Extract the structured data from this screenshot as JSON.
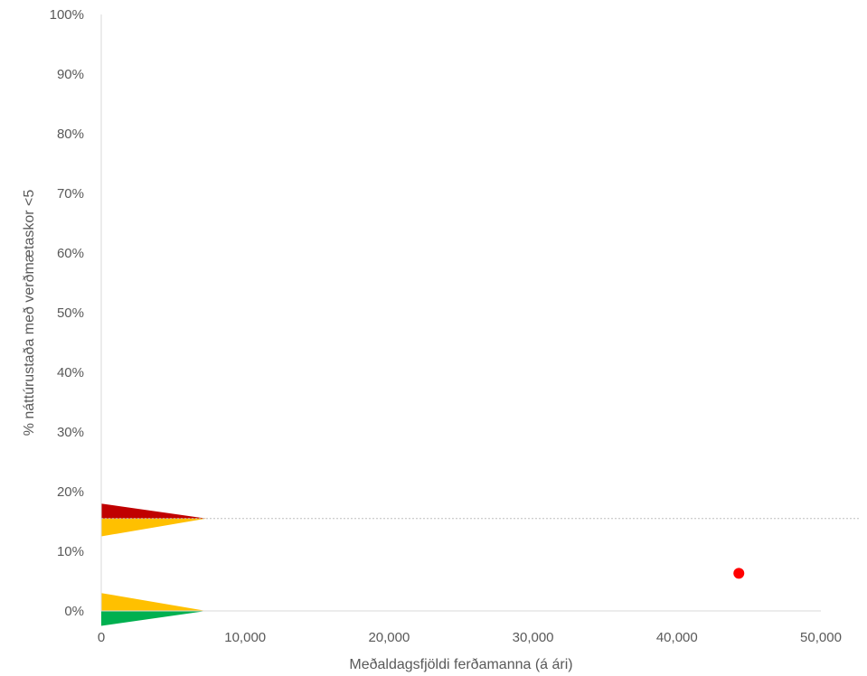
{
  "chart_data": {
    "type": "scatter",
    "title": "",
    "xlabel": "Meðaldagsfjöldi ferðamanna (á ári)",
    "ylabel": "% náttúrustaða með verðmætaskor <5",
    "xlim": [
      0,
      50000
    ],
    "ylim": [
      0,
      1
    ],
    "x_ticks": [
      0,
      10000,
      20000,
      30000,
      40000,
      50000
    ],
    "x_tick_labels": [
      "0",
      "10,000",
      "20,000",
      "30,000",
      "40,000",
      "50,000"
    ],
    "y_ticks": [
      0,
      0.1,
      0.2,
      0.3,
      0.4,
      0.5,
      0.6,
      0.7,
      0.8,
      0.9,
      1.0
    ],
    "y_tick_labels": [
      "0%",
      "10%",
      "20%",
      "30%",
      "40%",
      "50%",
      "60%",
      "70%",
      "80%",
      "90%",
      "100%"
    ],
    "grid": false,
    "legend": "none",
    "points": [
      {
        "x": 44300,
        "y": 0.063,
        "color": "#ff0000"
      }
    ],
    "reference_line": {
      "y": 0.155,
      "style": "dotted",
      "color": "#bfbfbf"
    },
    "markers": [
      {
        "color": "#c00000",
        "tip_x": 7300,
        "tip_y": 0.155,
        "base_x": 0,
        "base_y0": 0.155,
        "base_y1": 0.18
      },
      {
        "color": "#ffc000",
        "tip_x": 7300,
        "tip_y": 0.155,
        "base_x": 0,
        "base_y0": 0.125,
        "base_y1": 0.155
      },
      {
        "color": "#ffc000",
        "tip_x": 7300,
        "tip_y": 0.0,
        "base_x": 0,
        "base_y0": 0.0,
        "base_y1": 0.03
      },
      {
        "color": "#00b050",
        "tip_x": 7300,
        "tip_y": 0.0,
        "base_x": 0,
        "base_y0": -0.025,
        "base_y1": 0.0
      }
    ]
  }
}
